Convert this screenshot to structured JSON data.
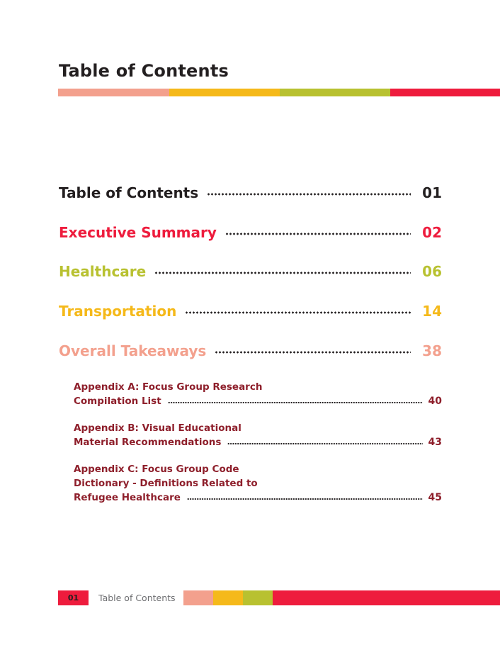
{
  "header": {
    "title": "Table of Contents",
    "stripe_colors": [
      "#f3a08d",
      "#f5b91a",
      "#b8c130",
      "#ee1c3d"
    ]
  },
  "toc": {
    "entries": [
      {
        "label": "Table of Contents",
        "page": "01",
        "color": "#231f20"
      },
      {
        "label": "Executive Summary",
        "page": "02",
        "color": "#ee1c3d"
      },
      {
        "label": "Healthcare",
        "page": "06",
        "color": "#b8c130"
      },
      {
        "label": "Transportation",
        "page": "14",
        "color": "#f5b91a"
      },
      {
        "label": "Overall Takeaways",
        "page": "38",
        "color": "#f3a08d"
      }
    ],
    "appendices": [
      {
        "lines": [
          "Appendix A: Focus Group Research",
          "Compilation List"
        ],
        "page": "40"
      },
      {
        "lines": [
          "Appendix B: Visual Educational",
          "Material Recommendations"
        ],
        "page": "43"
      },
      {
        "lines": [
          "Appendix C: Focus Group Code",
          "Dictionary - Definitions Related to",
          "Refugee Healthcare"
        ],
        "page": "45"
      }
    ]
  },
  "footer": {
    "page_number": "01",
    "section_title": "Table of Contents",
    "bar_colors": [
      "#f3a08d",
      "#f5b91a",
      "#b8c130",
      "#ee1c3d"
    ]
  }
}
